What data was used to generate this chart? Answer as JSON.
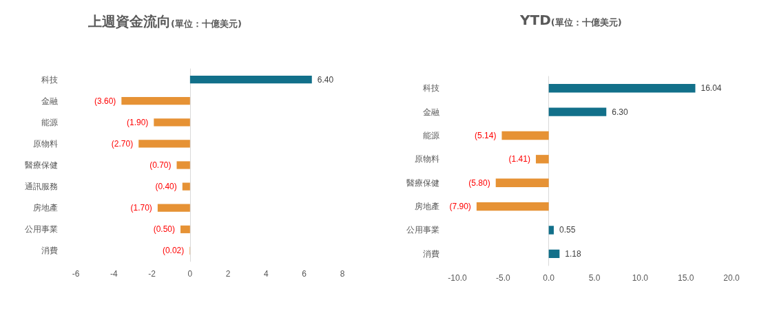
{
  "chart_data": [
    {
      "type": "bar",
      "orientation": "horizontal",
      "title": "上週資金流向",
      "subtitle": "(單位：十億美元)",
      "categories": [
        "科技",
        "金融",
        "能源",
        "原物料",
        "醫療保健",
        "通訊服務",
        "房地產",
        "公用事業",
        "消費"
      ],
      "values": [
        6.4,
        -3.6,
        -1.9,
        -2.7,
        -0.7,
        -0.4,
        -1.7,
        -0.5,
        -0.02
      ],
      "colors": [
        "#12708a",
        "#e69235",
        "#e69235",
        "#e69235",
        "#e69235",
        "#e69235",
        "#e69235",
        "#e69235",
        "#e69235"
      ],
      "value_labels": [
        "6.40",
        "(3.60)",
        "(1.90)",
        "(2.70)",
        "(0.70)",
        "(0.40)",
        "(1.70)",
        "(0.50)",
        "(0.02)"
      ],
      "xlim": [
        -6,
        8
      ],
      "xticks": [
        -6,
        -4,
        -2,
        0,
        2,
        4,
        6,
        8
      ]
    },
    {
      "type": "bar",
      "orientation": "horizontal",
      "title": "YTD",
      "subtitle": "(單位：十億美元)",
      "categories": [
        "科技",
        "金融",
        "能源",
        "原物料",
        "醫療保健",
        "房地產",
        "公用事業",
        "消費"
      ],
      "values": [
        16.04,
        6.3,
        -5.14,
        -1.41,
        -5.8,
        -7.9,
        0.55,
        1.18
      ],
      "colors": [
        "#12708a",
        "#12708a",
        "#e69235",
        "#e69235",
        "#e69235",
        "#e69235",
        "#12708a",
        "#12708a"
      ],
      "value_labels": [
        "16.04",
        "6.30",
        "(5.14)",
        "(1.41)",
        "(5.80)",
        "(7.90)",
        "0.55",
        "1.18"
      ],
      "xlim": [
        -10,
        20
      ],
      "xticks": [
        {
          "value": -10,
          "label": "-10.0"
        },
        {
          "value": -5,
          "label": "-5.0"
        },
        {
          "value": 0,
          "label": "0.0"
        },
        {
          "value": 5,
          "label": "5.0"
        },
        {
          "value": 10,
          "label": "10.0"
        },
        {
          "value": 15,
          "label": "15.0"
        },
        {
          "value": 20,
          "label": "20.0"
        }
      ]
    }
  ]
}
